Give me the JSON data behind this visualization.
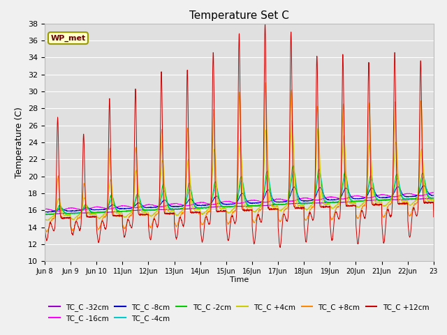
{
  "title": "Temperature Set C",
  "xlabel": "Time",
  "ylabel": "Temperature (C)",
  "ylim": [
    10,
    38
  ],
  "yticks": [
    10,
    12,
    14,
    16,
    18,
    20,
    22,
    24,
    26,
    28,
    30,
    32,
    34,
    36,
    38
  ],
  "n_days": 15,
  "n_per_day": 144,
  "xtick_labels": [
    "Jun 8",
    "Jun 9",
    "Jun 10",
    "11Jun",
    "12Jun",
    "13Jun",
    "14Jun",
    "15Jun",
    "16Jun",
    "17Jun",
    "18Jun",
    "19Jun",
    "20Jun",
    "21Jun",
    "22Jun",
    "23"
  ],
  "series": [
    {
      "label": "TC_C -32cm",
      "color": "#9900cc",
      "depth": -32
    },
    {
      "label": "TC_C -16cm",
      "color": "#ff00ff",
      "depth": -16
    },
    {
      "label": "TC_C -8cm",
      "color": "#0000cc",
      "depth": -8
    },
    {
      "label": "TC_C -4cm",
      "color": "#00cccc",
      "depth": -4
    },
    {
      "label": "TC_C -2cm",
      "color": "#00cc00",
      "depth": -2
    },
    {
      "label": "TC_C +4cm",
      "color": "#cccc00",
      "depth": 4
    },
    {
      "label": "TC_C +8cm",
      "color": "#ff8800",
      "depth": 8
    },
    {
      "label": "TC_C +12cm",
      "color": "#cc0000",
      "depth": 12
    }
  ],
  "annotation_text": "WP_met",
  "bg_color": "#e0e0e0",
  "grid_color": "#ffffff",
  "figsize": [
    6.4,
    4.8
  ],
  "dpi": 100
}
